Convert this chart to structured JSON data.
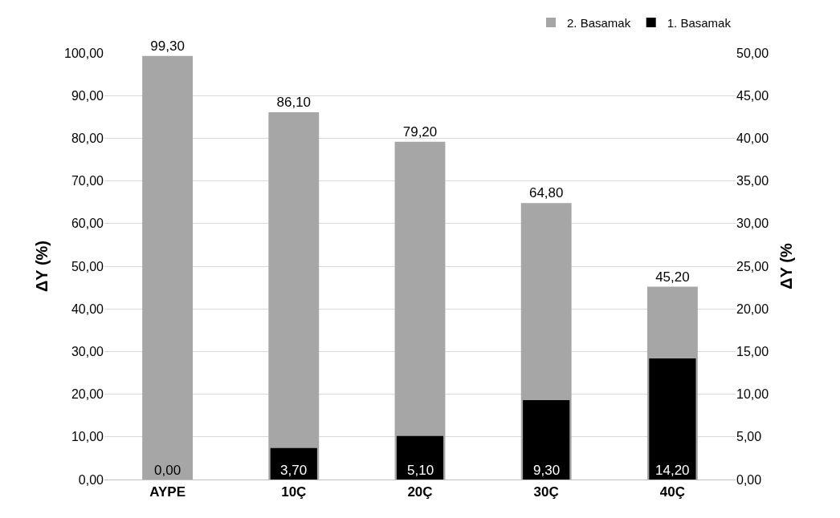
{
  "chart_data": {
    "type": "bar",
    "categories": [
      "AYPE",
      "10Ç",
      "20Ç",
      "30Ç",
      "40Ç"
    ],
    "ylabel": "ΔY (%)",
    "y2label": "ΔY (%",
    "series": [
      {
        "name": "2. Basamak",
        "color": "#a6a6a6",
        "axis": "y",
        "values": [
          99.3,
          86.1,
          79.2,
          64.8,
          45.2
        ],
        "value_labels": [
          "99,30",
          "86,10",
          "79,20",
          "64,80",
          "45,20"
        ]
      },
      {
        "name": "1. Basamak",
        "color": "#000000",
        "axis": "y2",
        "values": [
          0,
          3.7,
          5.1,
          9.3,
          14.2
        ],
        "value_labels": [
          "0,00",
          "3,70",
          "5,10",
          "9,30",
          "14,20"
        ]
      }
    ],
    "ylim": [
      0,
      100
    ],
    "yticks": [
      {
        "value": 0,
        "label": "0,00"
      },
      {
        "value": 10,
        "label": "10,00"
      },
      {
        "value": 20,
        "label": "20,00"
      },
      {
        "value": 30,
        "label": "30,00"
      },
      {
        "value": 40,
        "label": "40,00"
      },
      {
        "value": 50,
        "label": "50,00"
      },
      {
        "value": 60,
        "label": "60,00"
      },
      {
        "value": 70,
        "label": "70,00"
      },
      {
        "value": 80,
        "label": "80,00"
      },
      {
        "value": 90,
        "label": "90,00"
      },
      {
        "value": 100,
        "label": "100,00"
      }
    ],
    "y2lim": [
      0,
      50
    ],
    "y2ticks": [
      {
        "value": 0,
        "label": "0,00"
      },
      {
        "value": 5,
        "label": "5,00"
      },
      {
        "value": 10,
        "label": "10,00"
      },
      {
        "value": 15,
        "label": "15,00"
      },
      {
        "value": 20,
        "label": "20,00"
      },
      {
        "value": 25,
        "label": "25,00"
      },
      {
        "value": 30,
        "label": "30,00"
      },
      {
        "value": 35,
        "label": "35,00"
      },
      {
        "value": 40,
        "label": "40,00"
      },
      {
        "value": 45,
        "label": "45,00"
      },
      {
        "value": 50,
        "label": "50,00"
      }
    ],
    "grid": "y",
    "legend": "top right"
  }
}
